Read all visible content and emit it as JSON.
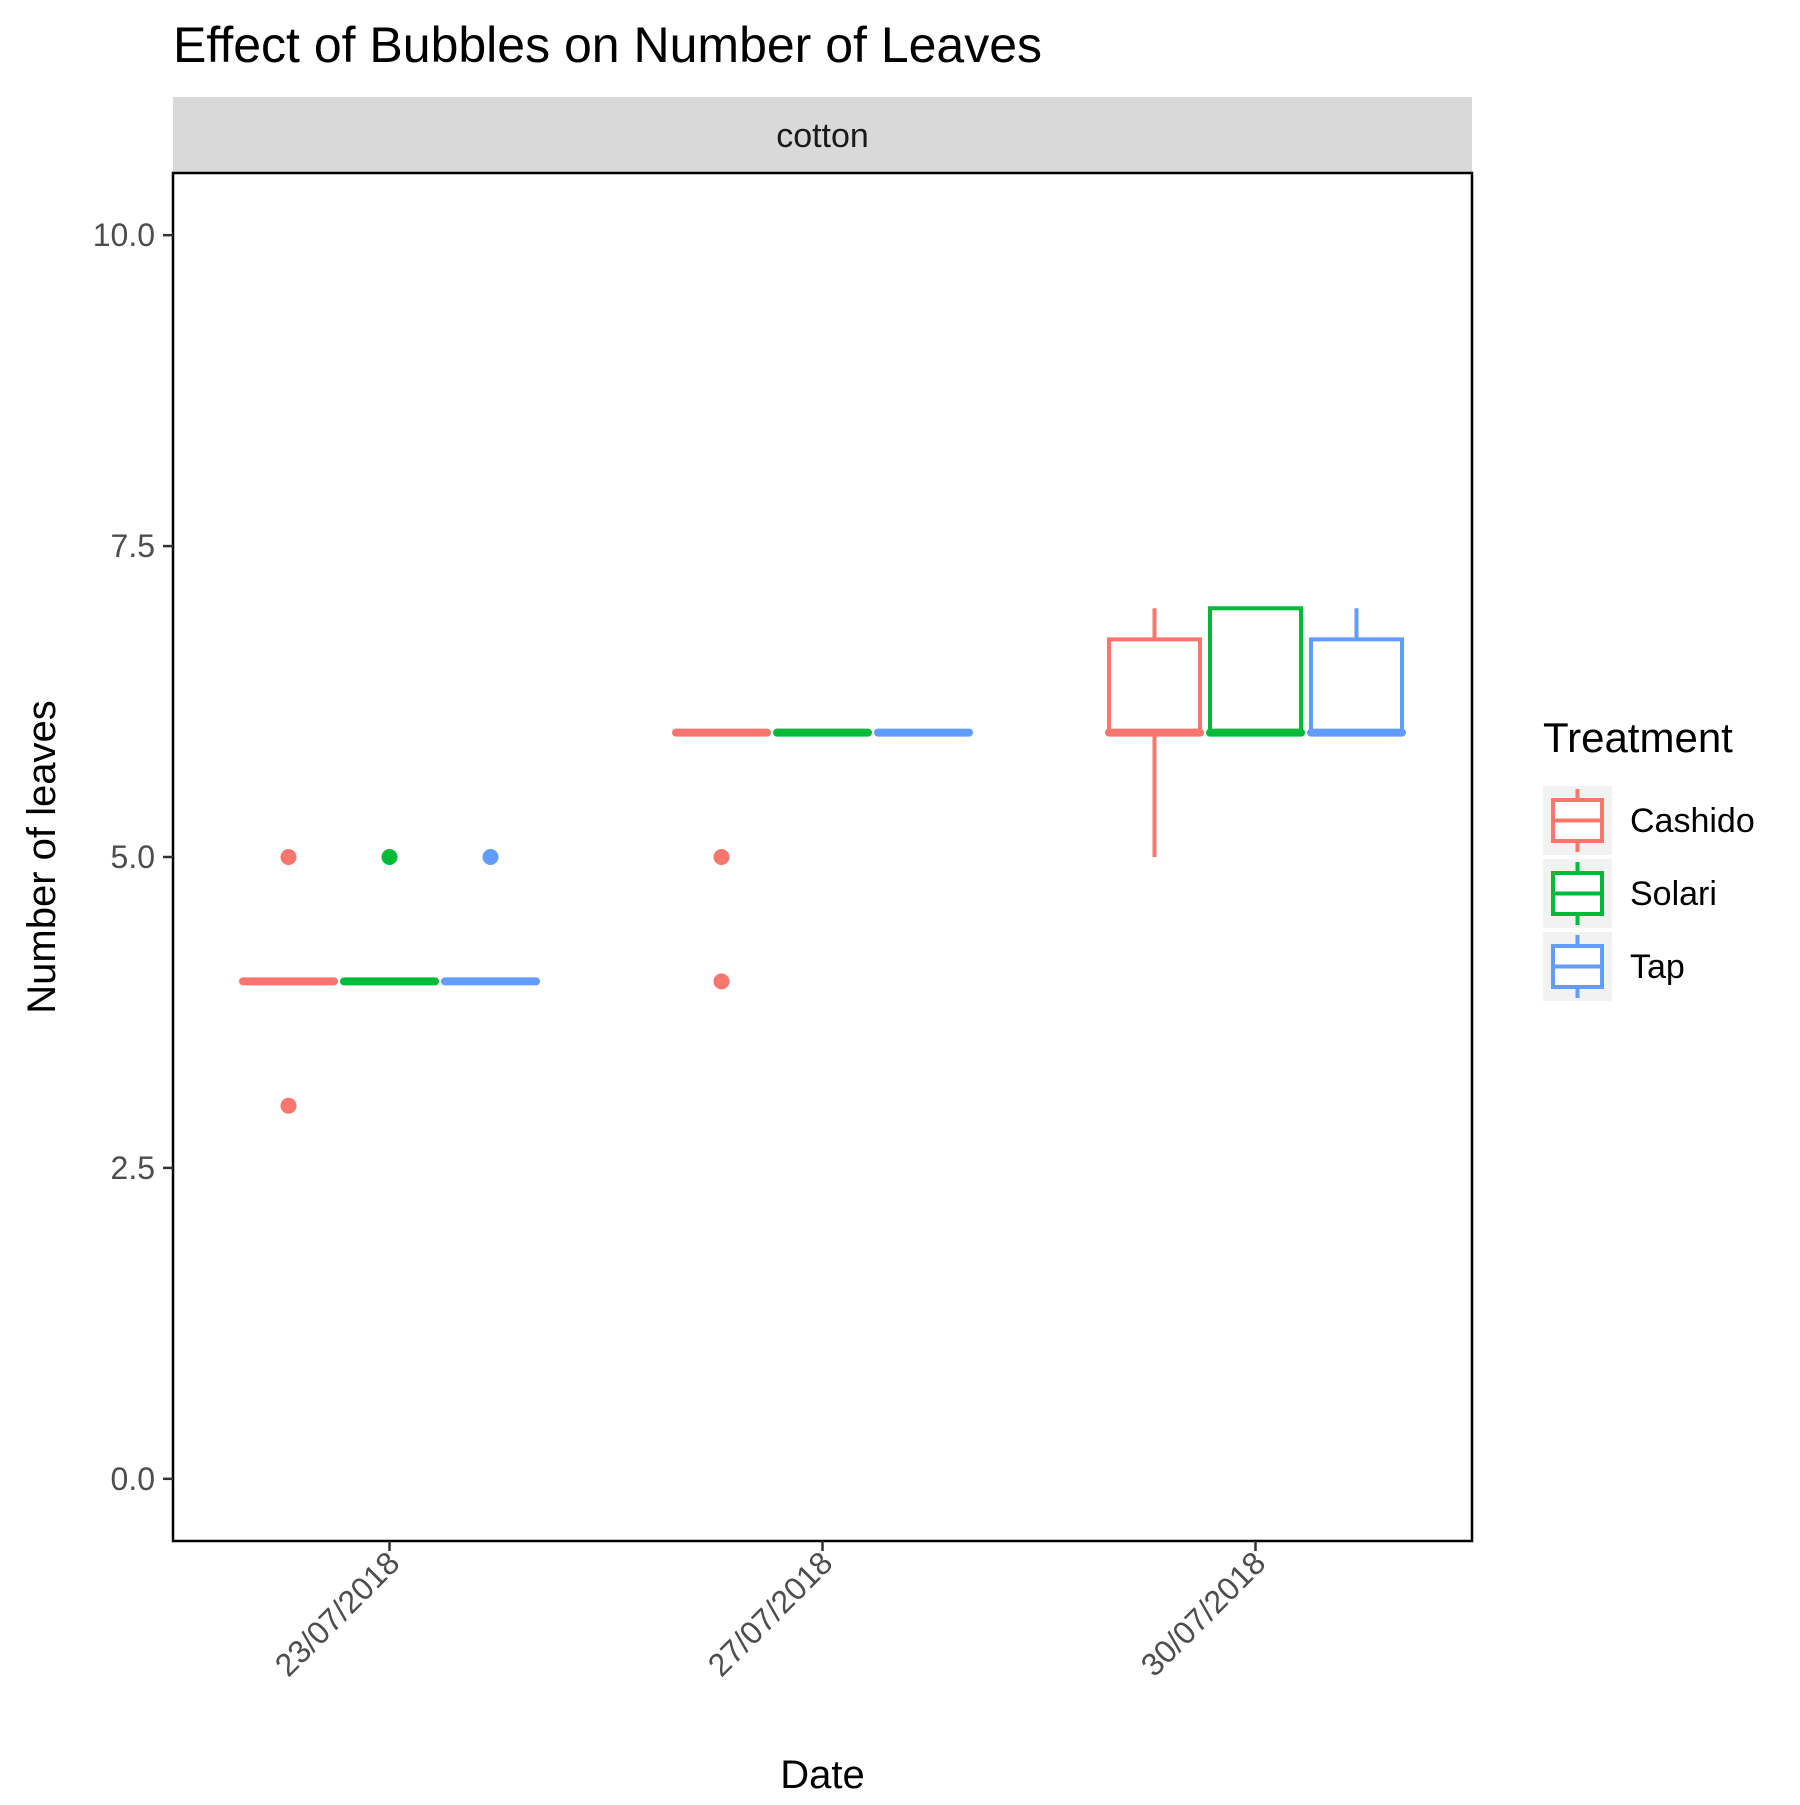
{
  "chart_data": {
    "type": "boxplot",
    "title": "Effect of Bubbles on Number of Leaves",
    "facet": "cotton",
    "xlabel": "Date",
    "ylabel": "Number of leaves",
    "categories": [
      "23/07/2018",
      "27/07/2018",
      "30/07/2018"
    ],
    "y_ticks": [
      "0.0",
      "2.5",
      "5.0",
      "7.5",
      "10.0"
    ],
    "y_tick_values": [
      0,
      2.5,
      5,
      7.5,
      10
    ],
    "ylim": [
      -0.5,
      10.5
    ],
    "grid": false,
    "legend": {
      "title": "Treatment",
      "position": "right"
    },
    "series": [
      {
        "name": "Cashido",
        "color": "#F8766D",
        "boxes": [
          {
            "category": "23/07/2018",
            "min": 4,
            "q1": 4,
            "median": 4,
            "q3": 4,
            "max": 4,
            "outliers": [
              5,
              3
            ]
          },
          {
            "category": "27/07/2018",
            "min": 6,
            "q1": 6,
            "median": 6,
            "q3": 6,
            "max": 6,
            "outliers": [
              5,
              4
            ]
          },
          {
            "category": "30/07/2018",
            "min": 5,
            "q1": 6,
            "median": 6,
            "q3": 6.75,
            "max": 7,
            "outliers": []
          }
        ]
      },
      {
        "name": "Solari",
        "color": "#00BA38",
        "boxes": [
          {
            "category": "23/07/2018",
            "min": 4,
            "q1": 4,
            "median": 4,
            "q3": 4,
            "max": 4,
            "outliers": [
              5
            ]
          },
          {
            "category": "27/07/2018",
            "min": 6,
            "q1": 6,
            "median": 6,
            "q3": 6,
            "max": 6,
            "outliers": []
          },
          {
            "category": "30/07/2018",
            "min": 6,
            "q1": 6,
            "median": 6,
            "q3": 7,
            "max": 7,
            "outliers": []
          }
        ]
      },
      {
        "name": "Tap",
        "color": "#619CFF",
        "boxes": [
          {
            "category": "23/07/2018",
            "min": 4,
            "q1": 4,
            "median": 4,
            "q3": 4,
            "max": 4,
            "outliers": [
              5
            ]
          },
          {
            "category": "27/07/2018",
            "min": 6,
            "q1": 6,
            "median": 6,
            "q3": 6,
            "max": 6,
            "outliers": []
          },
          {
            "category": "30/07/2018",
            "min": 6,
            "q1": 6,
            "median": 6,
            "q3": 6.75,
            "max": 7,
            "outliers": []
          }
        ]
      }
    ]
  }
}
